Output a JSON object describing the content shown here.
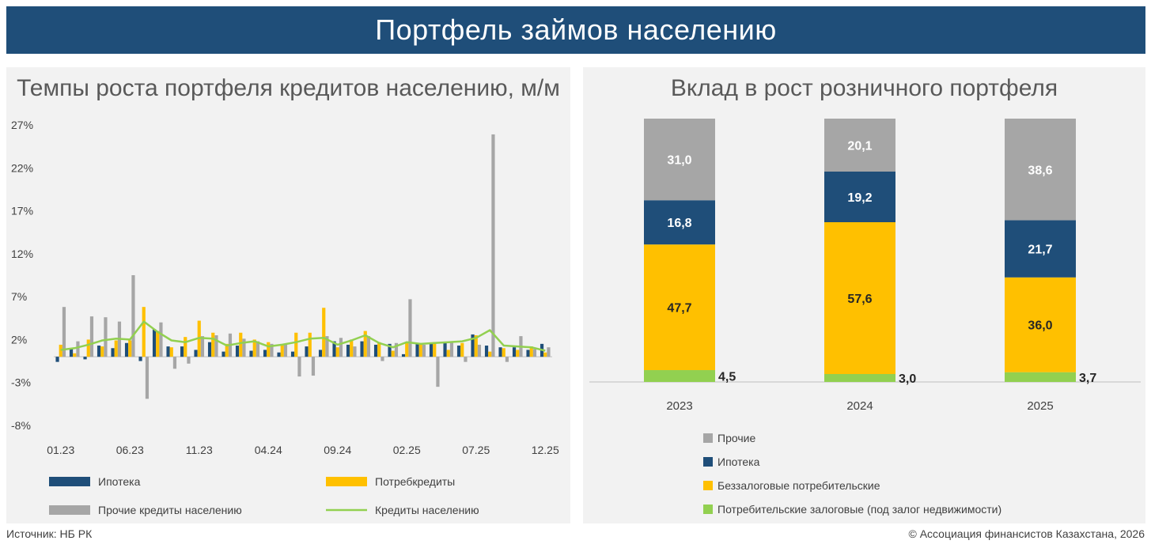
{
  "header": {
    "title": "Портфель займов населению"
  },
  "source": "Источник: НБ РК",
  "copyright": "© Ассоциация финансистов Казахстана, 2026",
  "colors": {
    "mortgage": "#1f4e79",
    "consumer": "#ffc000",
    "other": "#a6a6a6",
    "total": "#92d050",
    "secured": "#92d050",
    "banner": "#1f4e79",
    "panel": "#f2f2f2"
  },
  "chart_data": [
    {
      "type": "bar",
      "title": "Темпы роста портфеля кредитов населению, м/м",
      "y_ticks": [
        "27%",
        "22%",
        "17%",
        "12%",
        "7%",
        "2%",
        "-3%",
        "-8%"
      ],
      "ylim": [
        -8,
        27
      ],
      "x_tick_labels": [
        "01.23",
        "06.23",
        "11.23",
        "04.24",
        "09.24",
        "02.25",
        "07.25",
        "12.25"
      ],
      "categories": [
        "01.23",
        "02.23",
        "03.23",
        "04.23",
        "05.23",
        "06.23",
        "07.23",
        "08.23",
        "09.23",
        "10.23",
        "11.23",
        "12.23",
        "01.24",
        "02.24",
        "03.24",
        "04.24",
        "05.24",
        "06.24",
        "07.24",
        "08.24",
        "09.24",
        "10.24",
        "11.24",
        "12.24",
        "01.25",
        "02.25",
        "03.25",
        "04.25",
        "05.25",
        "06.25",
        "07.25",
        "08.25",
        "09.25",
        "10.25",
        "11.25",
        "12.25"
      ],
      "series": [
        {
          "name": "Ипотека",
          "kind": "bar",
          "values": [
            -0.6,
            1.0,
            -0.3,
            1.3,
            1.0,
            1.6,
            -0.5,
            3.2,
            1.2,
            1.2,
            0.8,
            1.7,
            0.6,
            1.3,
            0.7,
            0.8,
            0.5,
            0.6,
            1.2,
            0.8,
            1.8,
            1.4,
            1.8,
            1.4,
            1.5,
            0.3,
            1.5,
            1.6,
            1.6,
            1.3,
            2.6,
            1.3,
            1.1,
            1.1,
            0.8,
            1.5
          ]
        },
        {
          "name": "Потребкредиты",
          "kind": "bar",
          "values": [
            1.4,
            0.4,
            2.0,
            1.2,
            1.9,
            1.9,
            5.8,
            3.0,
            1.1,
            2.3,
            4.2,
            2.8,
            1.5,
            2.8,
            2.0,
            1.7,
            1.4,
            2.8,
            2.8,
            5.7,
            1.1,
            2.0,
            3.0,
            1.7,
            0.7,
            1.6,
            1.6,
            1.7,
            0.8,
            1.6,
            2.5,
            0.6,
            1.0,
            0.8,
            1.2,
            0.5
          ]
        },
        {
          "name": "Прочие кредиты населению",
          "kind": "bar",
          "values": [
            5.8,
            1.8,
            4.7,
            4.6,
            4.1,
            9.5,
            -4.9,
            4.0,
            -1.4,
            -0.8,
            2.4,
            2.5,
            2.7,
            2.1,
            1.8,
            1.5,
            1.4,
            -2.3,
            -2.2,
            2.4,
            2.2,
            1.2,
            2.4,
            -0.5,
            1.6,
            6.7,
            1.4,
            -3.5,
            1.8,
            -0.6,
            1.4,
            25.9,
            -0.6,
            2.4,
            0.9,
            1.1
          ]
        },
        {
          "name": "Кредиты населению",
          "kind": "line",
          "values": [
            0.8,
            1.0,
            1.4,
            1.9,
            2.1,
            2.0,
            4.1,
            2.9,
            1.9,
            1.7,
            2.2,
            2.1,
            1.3,
            1.6,
            1.8,
            1.2,
            1.4,
            1.7,
            2.1,
            2.2,
            1.4,
            1.9,
            2.5,
            1.6,
            1.1,
            1.7,
            1.5,
            1.6,
            1.7,
            1.8,
            2.2,
            3.1,
            1.3,
            1.2,
            1.1,
            0.7
          ]
        }
      ],
      "legend": [
        "Ипотека",
        "Потребкредиты",
        "Прочие кредиты населению",
        "Кредиты населению"
      ]
    },
    {
      "type": "stacked_bar",
      "title": "Вклад в рост розничного портфеля",
      "categories": [
        "2023",
        "2024",
        "2025"
      ],
      "series": [
        {
          "name": "Потребительские залоговые (под залог недвижимости)",
          "values": [
            4.5,
            3.0,
            3.7
          ],
          "labels": [
            "4,5",
            "3,0",
            "3,7"
          ]
        },
        {
          "name": "Беззалоговые потребительские",
          "values": [
            47.7,
            57.6,
            36.0
          ],
          "labels": [
            "47,7",
            "57,6",
            "36,0"
          ]
        },
        {
          "name": "Ипотека",
          "values": [
            16.8,
            19.2,
            21.7
          ],
          "labels": [
            "16,8",
            "19,2",
            "21,7"
          ]
        },
        {
          "name": "Прочие",
          "values": [
            31.0,
            20.1,
            38.6
          ],
          "labels": [
            "31,0",
            "20,1",
            "38,6"
          ]
        }
      ],
      "legend": [
        "Прочие",
        "Ипотека",
        "Беззалоговые потребительские",
        "Потребительские залоговые (под залог недвижимости)"
      ],
      "ylim": [
        0,
        100
      ]
    }
  ]
}
